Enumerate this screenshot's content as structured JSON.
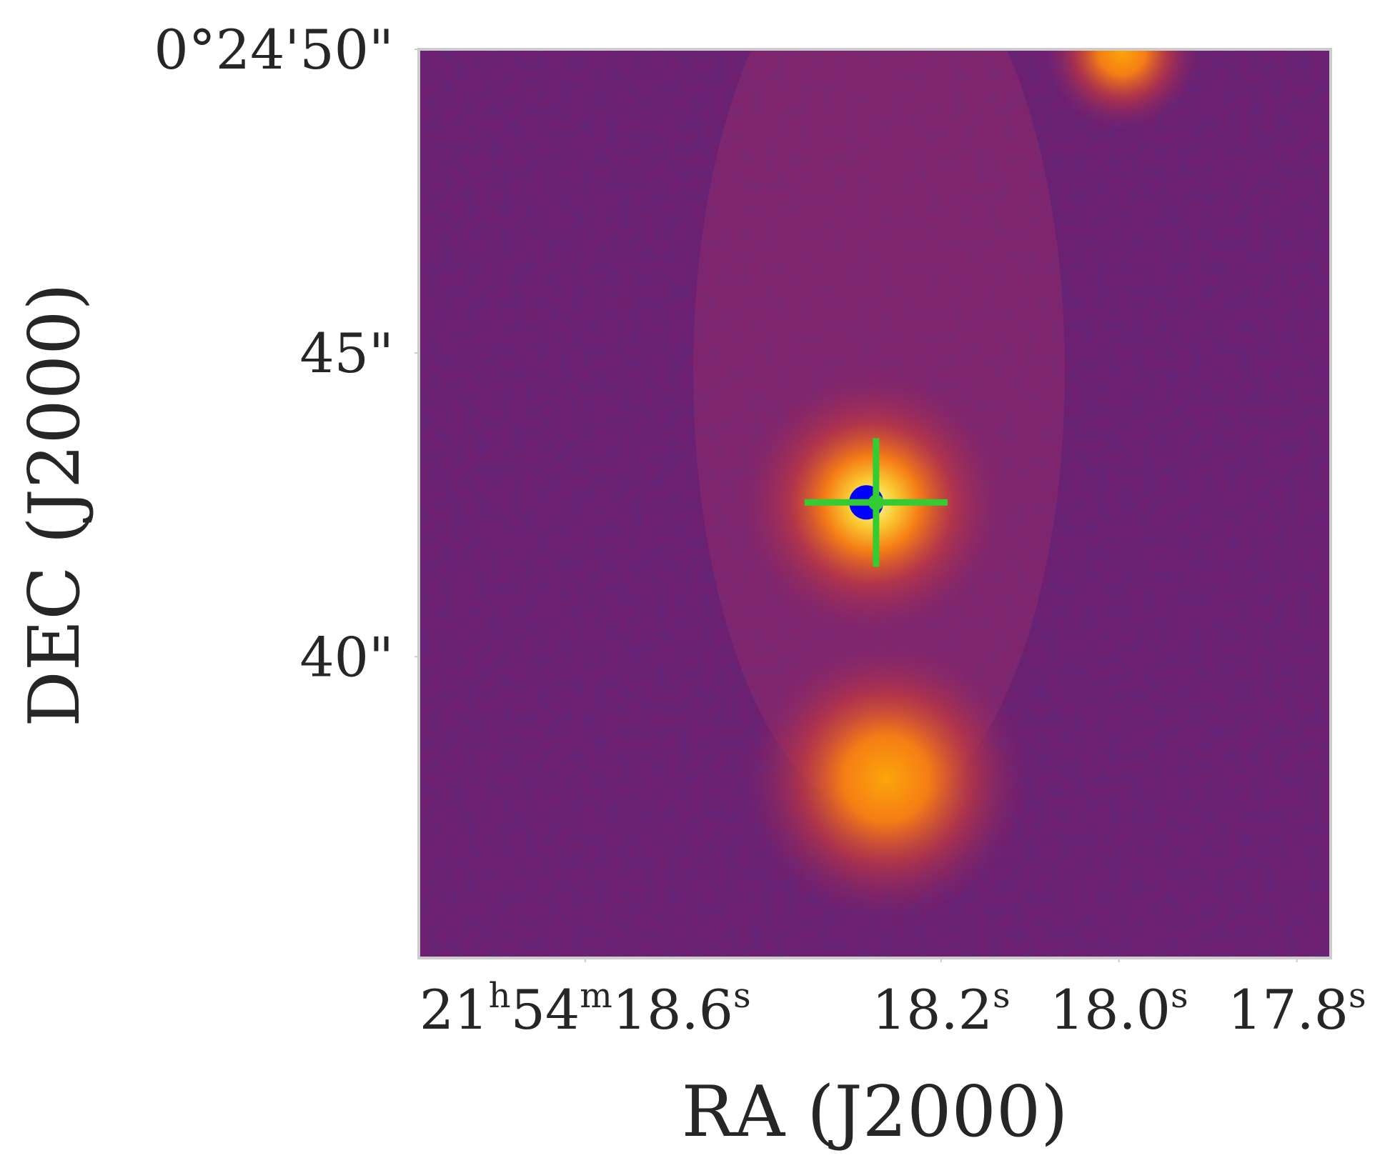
{
  "chart_data": {
    "type": "image",
    "xlabel": "RA (J2000)",
    "ylabel": "DEC (J2000)",
    "xlim": [
      18.787,
      17.762
    ],
    "ylim": [
      35.04,
      50
    ],
    "xticks": [
      {
        "value": 18.6,
        "label": "21h54m18.6s"
      },
      {
        "value": 18.2,
        "label": "18.2s"
      },
      {
        "value": 18.0,
        "label": "18.0s"
      },
      {
        "value": 17.8,
        "label": "17.8s"
      }
    ],
    "yticks": [
      {
        "value": 50,
        "label": "0°24'50\""
      },
      {
        "value": 45,
        "label": "45\""
      },
      {
        "value": 40,
        "label": "40\""
      }
    ],
    "frame_color": "#cccccc",
    "series": [
      {
        "marker": "circle",
        "color": "#0000ff",
        "x": [
          18.284
        ],
        "values": [
          42.54
        ]
      },
      {
        "marker": "plus",
        "color": "#33cc33",
        "x": [
          18.273
        ],
        "values": [
          42.54
        ]
      }
    ]
  }
}
